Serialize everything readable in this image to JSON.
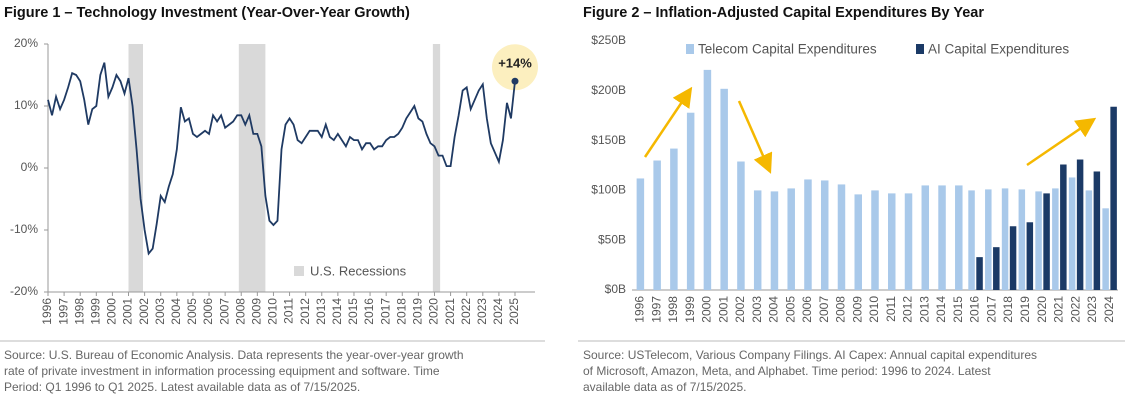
{
  "chart_data": [
    {
      "type": "line",
      "title": "Figure 1 – Technology Investment (Year-Over-Year Growth)",
      "x": [
        1996,
        1996.25,
        1996.5,
        1996.75,
        1997,
        1997.25,
        1997.5,
        1997.75,
        1998,
        1998.25,
        1998.5,
        1998.75,
        1999,
        1999.25,
        1999.5,
        1999.75,
        2000,
        2000.25,
        2000.5,
        2000.75,
        2001,
        2001.25,
        2001.5,
        2001.75,
        2002,
        2002.25,
        2002.5,
        2002.75,
        2003,
        2003.25,
        2003.5,
        2003.75,
        2004,
        2004.25,
        2004.5,
        2004.75,
        2005,
        2005.25,
        2005.5,
        2005.75,
        2006,
        2006.25,
        2006.5,
        2006.75,
        2007,
        2007.25,
        2007.5,
        2007.75,
        2008,
        2008.25,
        2008.5,
        2008.75,
        2009,
        2009.25,
        2009.5,
        2009.75,
        2010,
        2010.25,
        2010.5,
        2010.75,
        2011,
        2011.25,
        2011.5,
        2011.75,
        2012,
        2012.25,
        2012.5,
        2012.75,
        2013,
        2013.25,
        2013.5,
        2013.75,
        2014,
        2014.25,
        2014.5,
        2014.75,
        2015,
        2015.25,
        2015.5,
        2015.75,
        2016,
        2016.25,
        2016.5,
        2016.75,
        2017,
        2017.25,
        2017.5,
        2017.75,
        2018,
        2018.25,
        2018.5,
        2018.75,
        2019,
        2019.25,
        2019.5,
        2019.75,
        2020,
        2020.25,
        2020.5,
        2020.75,
        2021,
        2021.25,
        2021.5,
        2021.75,
        2022,
        2022.25,
        2022.5,
        2022.75,
        2023,
        2023.25,
        2023.5,
        2023.75,
        2024,
        2024.25,
        2024.5,
        2024.75,
        2025
      ],
      "series": [
        {
          "color": "#1f3a63",
          "values": [
            11,
            8.5,
            11.5,
            9.5,
            11,
            13,
            15.3,
            15,
            14,
            11,
            7,
            9.5,
            10,
            15,
            17,
            11.5,
            13,
            15,
            14,
            12,
            14.5,
            10,
            3,
            -5,
            -10,
            -13.8,
            -13,
            -9,
            -4.5,
            -5.5,
            -3,
            -1,
            3,
            9.8,
            7.5,
            8,
            5.5,
            5,
            5.5,
            6,
            5.5,
            8.5,
            7.5,
            8.5,
            6.5,
            7,
            7.5,
            8.5,
            8.5,
            7,
            8.5,
            5.5,
            5.5,
            3.5,
            -4.5,
            -8.5,
            -9.2,
            -8.5,
            3,
            7,
            8,
            7,
            4.5,
            4,
            5,
            6,
            6,
            6,
            5,
            7,
            5,
            4.5,
            5.5,
            4.5,
            3.5,
            5,
            4.5,
            4.5,
            3,
            4,
            4,
            3,
            3.5,
            3.5,
            4.5,
            5,
            5,
            5.5,
            6.5,
            8,
            9,
            10,
            8,
            7.5,
            5.5,
            4,
            3.5,
            2,
            2,
            0.3,
            0.3,
            5,
            8.5,
            12.5,
            13,
            9.5,
            11,
            12.5,
            13.5,
            8,
            4,
            2.5,
            1,
            4.5,
            10.5,
            8,
            14
          ]
        }
      ],
      "annotation": "+14%",
      "recessions": {
        "name": "U.S. Recessions",
        "color": "#d9d9d9",
        "spans": [
          [
            2001,
            2001.9
          ],
          [
            2007.85,
            2009.5
          ],
          [
            2019.9,
            2020.35
          ]
        ]
      },
      "xlim": [
        1996,
        2025
      ],
      "xticks": [
        1996,
        1997,
        1998,
        1999,
        2000,
        2001,
        2002,
        2003,
        2004,
        2005,
        2006,
        2007,
        2008,
        2009,
        2010,
        2011,
        2012,
        2013,
        2014,
        2015,
        2016,
        2017,
        2018,
        2019,
        2020,
        2021,
        2022,
        2023,
        2024,
        2025
      ],
      "ylim": [
        -20,
        20
      ],
      "yticks": [
        {
          "value": -20,
          "label": "-20%"
        },
        {
          "value": -10,
          "label": "-10%"
        },
        {
          "value": 0,
          "label": "0%"
        },
        {
          "value": 10,
          "label": "10%"
        },
        {
          "value": 20,
          "label": "20%"
        }
      ],
      "source": [
        "Source: U.S. Bureau of Economic Analysis. Data represents the year-over-year growth",
        "rate of private investment in information processing equipment and software. Time",
        "Period: Q1 1996 to Q1 2025. Latest available data as of 7/15/2025."
      ]
    },
    {
      "type": "bar",
      "title": "Figure 2 – Inflation-Adjusted Capital Expenditures By Year",
      "categories": [
        "1996",
        "1997",
        "1998",
        "1999",
        "2000",
        "2001",
        "2002",
        "2003",
        "2004",
        "2005",
        "2006",
        "2007",
        "2008",
        "2009",
        "2010",
        "2011",
        "2012",
        "2013",
        "2014",
        "2015",
        "2016",
        "2017",
        "2018",
        "2019",
        "2020",
        "2021",
        "2022",
        "2023",
        "2024"
      ],
      "series": [
        {
          "name": "Telecom Capital Expenditures",
          "color": "#a9c9ea",
          "values": [
            112,
            130,
            142,
            178,
            221,
            202,
            129,
            100,
            99,
            102,
            111,
            110,
            106,
            96,
            100,
            97,
            97,
            105,
            105,
            105,
            100,
            101,
            102,
            101,
            99,
            102,
            113,
            100,
            82
          ]
        },
        {
          "name": "AI Capital Expenditures",
          "color": "#1b3a66",
          "values": [
            null,
            null,
            null,
            null,
            null,
            null,
            null,
            null,
            null,
            null,
            null,
            null,
            null,
            null,
            null,
            null,
            null,
            null,
            null,
            null,
            33,
            43,
            64,
            68,
            97,
            126,
            131,
            119,
            184
          ]
        }
      ],
      "ylim": [
        0,
        250
      ],
      "yticks": [
        {
          "value": 0,
          "label": "$0B"
        },
        {
          "value": 50,
          "label": "$50B"
        },
        {
          "value": 100,
          "label": "$100B"
        },
        {
          "value": 150,
          "label": "$150B"
        },
        {
          "value": 200,
          "label": "$200B"
        },
        {
          "value": 250,
          "label": "$250B"
        }
      ],
      "source": [
        "Source: USTelecom, Various Company Filings. AI Capex: Annual capital expenditures",
        "of Microsoft, Amazon, Meta, and Alphabet. Time period: 1996 to 2024. Latest",
        "available data as of 7/15/2025."
      ]
    }
  ]
}
